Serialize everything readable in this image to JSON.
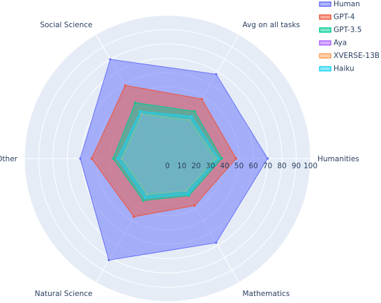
{
  "chart_data": {
    "type": "radar",
    "categories": [
      "Humanities",
      "Mathematics",
      "Natural Science",
      "Other",
      "Social Science",
      "Avg on all tasks"
    ],
    "radial_range": [
      0,
      100
    ],
    "radial_ticks": [
      "0",
      "10",
      "20",
      "30",
      "40",
      "50",
      "60",
      "70",
      "80",
      "90",
      "100"
    ],
    "legend_position": "top-right",
    "series": [
      {
        "name": "Human",
        "color": "#636efa",
        "values": [
          70,
          68,
          82,
          61,
          80,
          68
        ]
      },
      {
        "name": "GPT-4",
        "color": "#ef553b",
        "values": [
          48,
          38,
          47,
          53,
          59,
          48
        ]
      },
      {
        "name": "GPT-3.5",
        "color": "#00cc96",
        "values": [
          38,
          30,
          34,
          38,
          45,
          38
        ]
      },
      {
        "name": "Aya",
        "color": "#ab63fa",
        "values": [
          31,
          25,
          27,
          30,
          34,
          29
        ]
      },
      {
        "name": "XVERSE-13B",
        "color": "#ffa15a",
        "values": [
          34,
          26,
          29,
          32,
          36,
          31
        ]
      },
      {
        "name": "Haiku",
        "color": "#19d3f3",
        "values": [
          36,
          29,
          32,
          35,
          38,
          34
        ]
      }
    ]
  }
}
